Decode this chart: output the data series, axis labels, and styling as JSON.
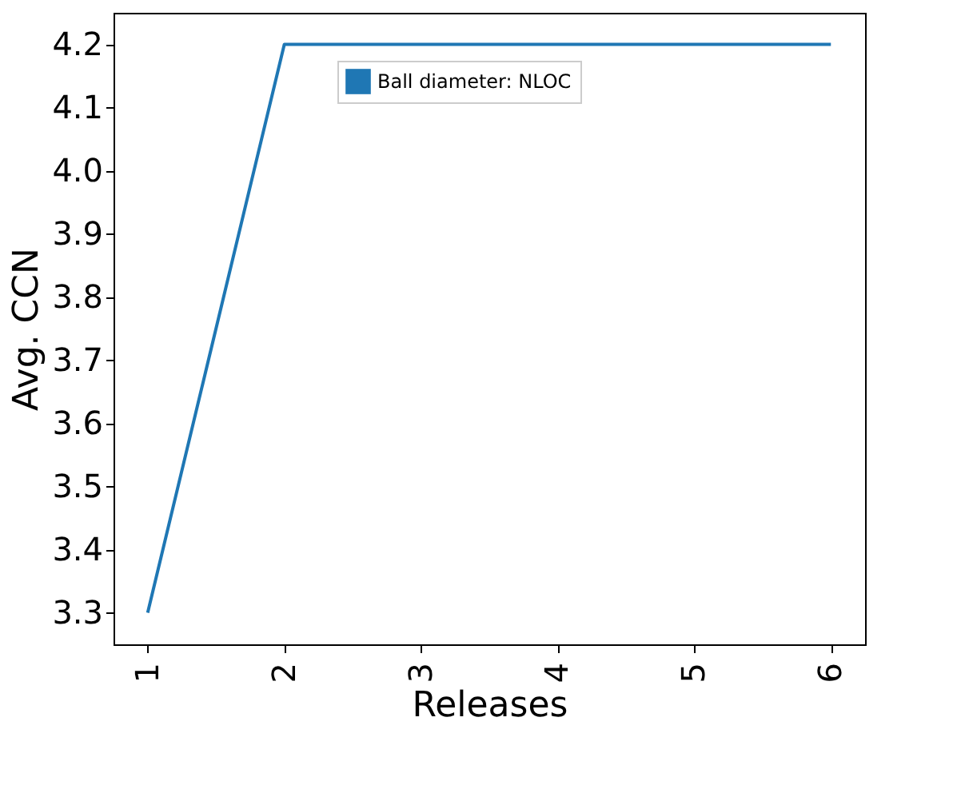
{
  "chart_data": {
    "type": "line",
    "xlabel": "Releases",
    "ylabel": "Avg. CCN",
    "x": [
      1,
      2,
      3,
      4,
      5,
      6
    ],
    "series": [
      {
        "name": "Ball diameter: NLOC",
        "color": "#1f77b4",
        "values": [
          3.3,
          4.2,
          4.2,
          4.2,
          4.2,
          4.2
        ]
      }
    ],
    "xlim": [
      0.75,
      6.25
    ],
    "xticks": [
      1,
      2,
      3,
      4,
      5,
      6
    ],
    "ylim": [
      3.25,
      4.25
    ],
    "yticks": [
      3.3,
      3.4,
      3.5,
      3.6,
      3.7,
      3.8,
      3.9,
      {
        "value": 4.0,
        "label": "4.0"
      },
      4.1,
      4.2
    ],
    "grid": false,
    "legend": "top",
    "marker": "none",
    "line_style": "solid"
  }
}
